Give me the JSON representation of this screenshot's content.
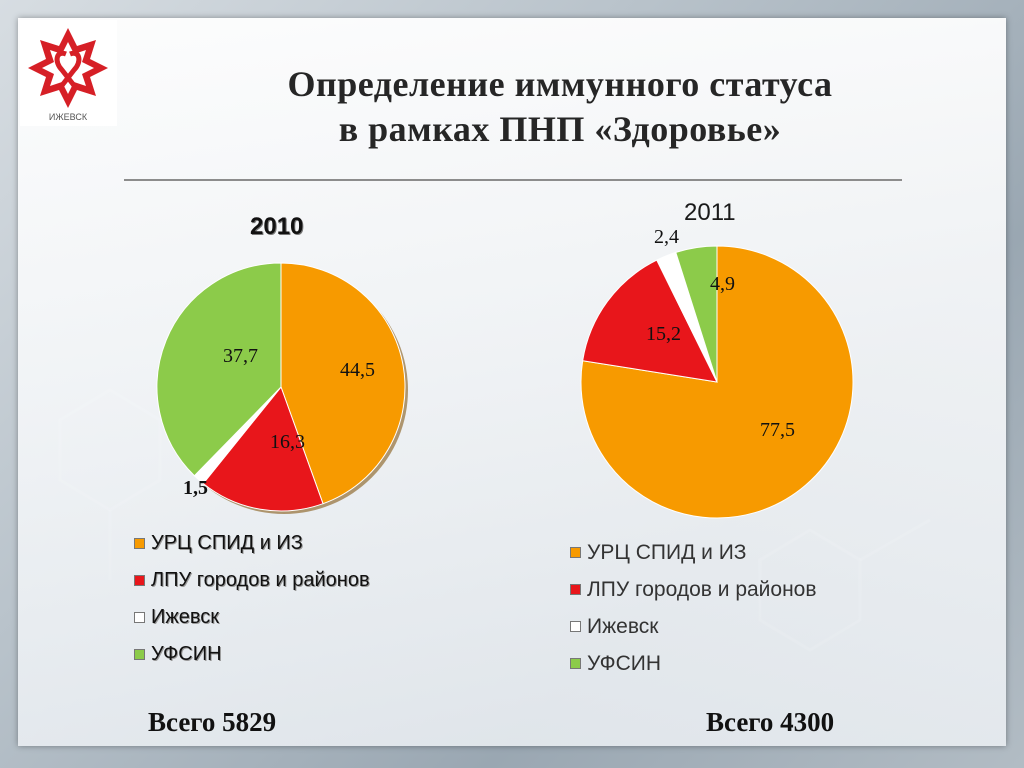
{
  "slide": {
    "title_line1": "Определение иммунного статуса",
    "title_line2": "в рамках ПНП «Здоровье»",
    "logo_text": "ИЖЕВСК"
  },
  "chart_data": [
    {
      "type": "pie",
      "title": "2010",
      "categories": [
        "УРЦ СПИД и ИЗ",
        "ЛПУ городов и районов",
        "Ижевск",
        "УФСИН"
      ],
      "values": [
        44.5,
        16.3,
        1.5,
        37.7
      ],
      "value_labels": [
        "44,5",
        "16,3",
        "1,5",
        "37,7"
      ],
      "colors": [
        "#F79A00",
        "#E8161B",
        "#FFFFFF",
        "#8CCB4A"
      ],
      "legend_placement": "bottom",
      "footer": "Всего 5829"
    },
    {
      "type": "pie",
      "title": "2011",
      "categories": [
        "УРЦ СПИД и ИЗ",
        "ЛПУ городов и районов",
        "Ижевск",
        "УФСИН"
      ],
      "values": [
        77.5,
        15.2,
        2.4,
        4.9
      ],
      "value_labels": [
        "77,5",
        "15,2",
        "2,4",
        "4,9"
      ],
      "colors": [
        "#F79A00",
        "#E8161B",
        "#FFFFFF",
        "#8CCB4A"
      ],
      "legend_placement": "bottom",
      "footer": "Всего 4300"
    }
  ]
}
